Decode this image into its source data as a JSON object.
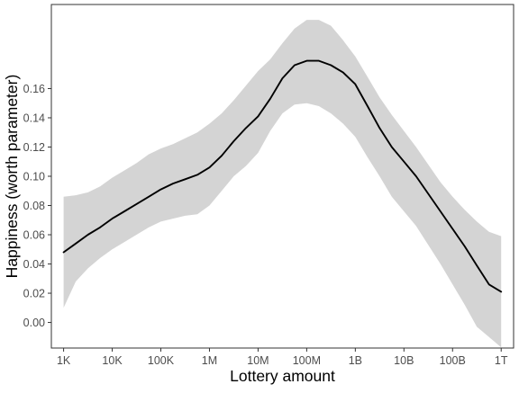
{
  "chart_data": {
    "type": "line",
    "title": "",
    "xlabel": "Lottery amount",
    "ylabel": "Happiness (worth parameter)",
    "x_scale": "log10",
    "x_ticks": [
      {
        "value": 1000,
        "label": "1K"
      },
      {
        "value": 10000,
        "label": "10K"
      },
      {
        "value": 100000,
        "label": "100K"
      },
      {
        "value": 1000000,
        "label": "1M"
      },
      {
        "value": 10000000,
        "label": "10M"
      },
      {
        "value": 100000000,
        "label": "100M"
      },
      {
        "value": 1000000000,
        "label": "1B"
      },
      {
        "value": 10000000000,
        "label": "10B"
      },
      {
        "value": 100000000000,
        "label": "100B"
      },
      {
        "value": 1000000000000,
        "label": "1T"
      }
    ],
    "y_ticks": [
      "0.00",
      "0.02",
      "0.04",
      "0.06",
      "0.08",
      "0.10",
      "0.12",
      "0.14",
      "0.16"
    ],
    "xlim": [
      560,
      1800000000000
    ],
    "ylim": [
      -0.0175,
      0.2175
    ],
    "grid": false,
    "series": [
      {
        "x": [
          1000,
          1780,
          3160,
          5620,
          10000,
          17800,
          31600,
          56200,
          100000,
          178000,
          316000,
          562000,
          1000000,
          1780000,
          3160000,
          5620000,
          10000000,
          17800000,
          31600000,
          56200000,
          100000000,
          178000000,
          316000000,
          562000000,
          1000000000,
          1780000000,
          3160000000,
          5620000000,
          10000000000,
          17800000000,
          31600000000,
          56200000000,
          100000000000,
          178000000000,
          316000000000,
          562000000000,
          1000000000000
        ],
        "y": [
          0.048,
          0.054,
          0.06,
          0.065,
          0.071,
          0.076,
          0.081,
          0.086,
          0.091,
          0.095,
          0.098,
          0.101,
          0.106,
          0.114,
          0.124,
          0.133,
          0.141,
          0.153,
          0.167,
          0.176,
          0.179,
          0.179,
          0.176,
          0.171,
          0.163,
          0.148,
          0.133,
          0.12,
          0.11,
          0.1,
          0.088,
          0.076,
          0.064,
          0.052,
          0.039,
          0.026,
          0.021
        ],
        "lower": [
          0.01,
          0.028,
          0.037,
          0.044,
          0.05,
          0.055,
          0.06,
          0.065,
          0.069,
          0.071,
          0.073,
          0.074,
          0.08,
          0.09,
          0.1,
          0.107,
          0.116,
          0.131,
          0.143,
          0.149,
          0.15,
          0.148,
          0.143,
          0.136,
          0.127,
          0.113,
          0.1,
          0.086,
          0.076,
          0.066,
          0.053,
          0.04,
          0.026,
          0.012,
          -0.003,
          -0.01,
          -0.017
        ],
        "upper": [
          0.086,
          0.087,
          0.089,
          0.093,
          0.099,
          0.104,
          0.109,
          0.115,
          0.119,
          0.122,
          0.126,
          0.13,
          0.136,
          0.143,
          0.152,
          0.162,
          0.172,
          0.18,
          0.191,
          0.201,
          0.207,
          0.207,
          0.203,
          0.193,
          0.182,
          0.168,
          0.154,
          0.142,
          0.131,
          0.12,
          0.108,
          0.096,
          0.086,
          0.077,
          0.069,
          0.062,
          0.059
        ]
      }
    ]
  }
}
